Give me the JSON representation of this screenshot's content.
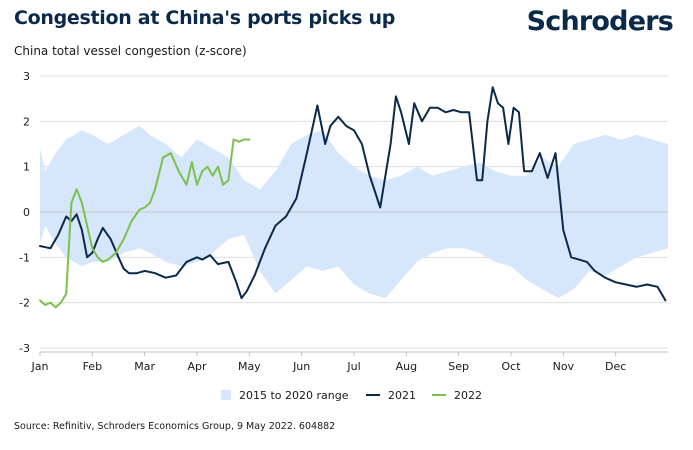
{
  "header": {
    "title": "Congestion at China's ports picks up",
    "logo": "Schroders"
  },
  "footer": {
    "source": "Source: Refinitiv, Schroders Economics Group, 9 May 2022. 604882"
  },
  "colors": {
    "range": "#d6e6fb",
    "s2021": "#0b2a4a",
    "s2022": "#7cc04d",
    "grid": "#d9d9d9",
    "text": "#0b2a4a"
  },
  "chart_data": {
    "type": "line",
    "title": "China total vessel congestion (z-score)",
    "ylim": [
      -3,
      3
    ],
    "yticks": [
      3,
      2,
      1,
      0,
      -1,
      -2,
      -3
    ],
    "xlim": [
      0,
      12
    ],
    "xticks": [
      {
        "label": "Jan",
        "x": 0
      },
      {
        "label": "Feb",
        "x": 1
      },
      {
        "label": "Mar",
        "x": 2
      },
      {
        "label": "Apr",
        "x": 3
      },
      {
        "label": "May",
        "x": 4
      },
      {
        "label": "Jun",
        "x": 5
      },
      {
        "label": "Jul",
        "x": 6
      },
      {
        "label": "Aug",
        "x": 7
      },
      {
        "label": "Sep",
        "x": 8
      },
      {
        "label": "Oct",
        "x": 9
      },
      {
        "label": "Nov",
        "x": 10
      },
      {
        "label": "Dec",
        "x": 11
      }
    ],
    "legend": {
      "position": "bottom",
      "entries": [
        "2015 to 2020 range",
        "2021",
        "2022"
      ]
    },
    "range_band": {
      "name": "2015 to 2020 range",
      "x": [
        0,
        0.1,
        0.3,
        0.5,
        0.8,
        1.0,
        1.3,
        1.6,
        1.9,
        2.1,
        2.4,
        2.7,
        3.0,
        3.3,
        3.6,
        3.9,
        4.2,
        4.5,
        4.8,
        5.1,
        5.4,
        5.7,
        6.0,
        6.3,
        6.6,
        6.9,
        7.2,
        7.5,
        7.8,
        8.1,
        8.4,
        8.7,
        9.0,
        9.3,
        9.6,
        9.9,
        10.2,
        10.5,
        10.8,
        11.1,
        11.4,
        11.7,
        12.0
      ],
      "upper": [
        1.4,
        0.9,
        1.3,
        1.6,
        1.8,
        1.7,
        1.5,
        1.7,
        1.9,
        1.7,
        1.5,
        1.2,
        1.6,
        1.4,
        1.2,
        0.7,
        0.5,
        0.9,
        1.5,
        1.7,
        1.8,
        1.3,
        1.0,
        0.8,
        0.7,
        0.8,
        1.0,
        0.8,
        0.9,
        1.0,
        1.1,
        0.9,
        0.8,
        0.8,
        1.2,
        1.0,
        1.5,
        1.6,
        1.7,
        1.6,
        1.7,
        1.6,
        1.5
      ],
      "lower": [
        -0.7,
        -0.3,
        -0.7,
        -1.0,
        -1.2,
        -1.1,
        -1.1,
        -0.9,
        -0.8,
        -0.9,
        -1.1,
        -1.2,
        -1.1,
        -0.9,
        -0.6,
        -0.5,
        -1.3,
        -1.8,
        -1.5,
        -1.2,
        -1.3,
        -1.2,
        -1.6,
        -1.8,
        -1.9,
        -1.5,
        -1.1,
        -0.9,
        -0.8,
        -0.8,
        -0.9,
        -1.1,
        -1.2,
        -1.5,
        -1.7,
        -1.9,
        -1.7,
        -1.3,
        -1.4,
        -1.2,
        -1.0,
        -0.9,
        -0.8
      ]
    },
    "series": [
      {
        "name": "2021",
        "x": [
          0,
          0.2,
          0.35,
          0.5,
          0.6,
          0.7,
          0.8,
          0.9,
          1.0,
          1.1,
          1.2,
          1.35,
          1.5,
          1.6,
          1.7,
          1.85,
          2.0,
          2.2,
          2.4,
          2.6,
          2.8,
          3.0,
          3.1,
          3.25,
          3.4,
          3.6,
          3.75,
          3.85,
          3.95,
          4.1,
          4.3,
          4.5,
          4.7,
          4.9,
          5.1,
          5.3,
          5.45,
          5.55,
          5.7,
          5.85,
          6.0,
          6.15,
          6.3,
          6.5,
          6.7,
          6.8,
          6.9,
          7.05,
          7.15,
          7.3,
          7.45,
          7.6,
          7.75,
          7.9,
          8.05,
          8.2,
          8.35,
          8.45,
          8.55,
          8.65,
          8.75,
          8.85,
          8.95,
          9.05,
          9.15,
          9.25,
          9.4,
          9.55,
          9.7,
          9.85,
          10.0,
          10.15,
          10.3,
          10.45,
          10.6,
          10.8,
          11.0,
          11.2,
          11.4,
          11.6,
          11.8,
          11.95
        ],
        "values": [
          -0.75,
          -0.8,
          -0.5,
          -0.1,
          -0.2,
          -0.05,
          -0.4,
          -1.0,
          -0.9,
          -0.6,
          -0.35,
          -0.6,
          -1.0,
          -1.25,
          -1.35,
          -1.35,
          -1.3,
          -1.35,
          -1.45,
          -1.4,
          -1.1,
          -1.0,
          -1.05,
          -0.95,
          -1.15,
          -1.1,
          -1.55,
          -1.9,
          -1.75,
          -1.4,
          -0.8,
          -0.3,
          -0.1,
          0.3,
          1.3,
          2.35,
          1.5,
          1.9,
          2.1,
          1.9,
          1.8,
          1.5,
          0.8,
          0.1,
          1.5,
          2.55,
          2.2,
          1.5,
          2.4,
          2.0,
          2.3,
          2.3,
          2.2,
          2.25,
          2.2,
          2.2,
          0.7,
          0.7,
          2.0,
          2.75,
          2.4,
          2.3,
          1.5,
          2.3,
          2.2,
          0.9,
          0.9,
          1.3,
          0.75,
          1.3,
          -0.4,
          -1.0,
          -1.05,
          -1.1,
          -1.3,
          -1.45,
          -1.55,
          -1.6,
          -1.65,
          -1.6,
          -1.65,
          -1.95
        ]
      },
      {
        "name": "2022",
        "x": [
          0,
          0.1,
          0.2,
          0.3,
          0.4,
          0.5,
          0.6,
          0.7,
          0.8,
          0.9,
          1.0,
          1.1,
          1.2,
          1.3,
          1.45,
          1.6,
          1.75,
          1.9,
          2.0,
          2.1,
          2.2,
          2.35,
          2.5,
          2.65,
          2.8,
          2.9,
          3.0,
          3.1,
          3.2,
          3.3,
          3.4,
          3.5,
          3.6,
          3.7,
          3.8,
          3.9,
          4.0
        ],
        "values": [
          -1.95,
          -2.05,
          -2.0,
          -2.1,
          -2.0,
          -1.8,
          0.2,
          0.5,
          0.2,
          -0.3,
          -0.8,
          -1.0,
          -1.1,
          -1.05,
          -0.9,
          -0.6,
          -0.2,
          0.05,
          0.1,
          0.2,
          0.5,
          1.2,
          1.3,
          0.9,
          0.6,
          1.1,
          0.6,
          0.9,
          1.0,
          0.8,
          1.0,
          0.6,
          0.7,
          1.6,
          1.55,
          1.6,
          1.6
        ]
      }
    ]
  }
}
